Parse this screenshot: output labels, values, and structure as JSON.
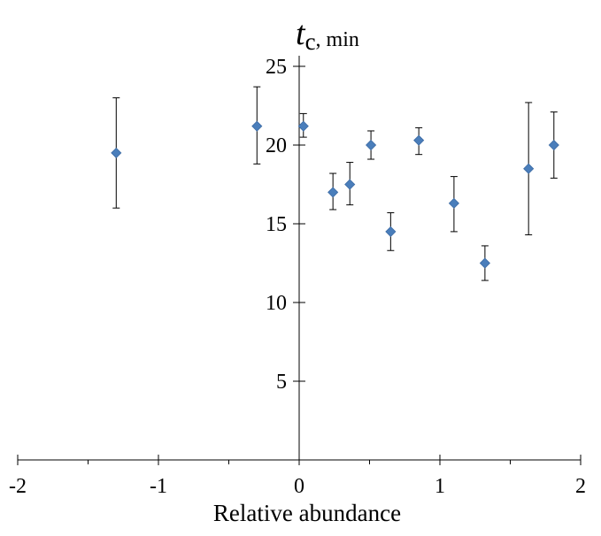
{
  "chart_data": {
    "type": "scatter",
    "title": "",
    "xlabel": "Relative abundance",
    "ylabel": {
      "symbol": "t",
      "subscript": "c",
      "unit": ", min"
    },
    "xlim": [
      -2,
      2
    ],
    "ylim": [
      0,
      25
    ],
    "x_ticks": [
      -2,
      -1,
      0,
      1,
      2
    ],
    "x_tick_labels": [
      "-2",
      "-1",
      "0",
      "1",
      "2"
    ],
    "x_minor_ticks": [
      -1.5,
      -0.5,
      0.5,
      1.5
    ],
    "y_ticks": [
      5,
      10,
      15,
      20,
      25
    ],
    "y_tick_labels": [
      "5",
      "10",
      "15",
      "20",
      "25"
    ],
    "grid": false,
    "marker": "diamond",
    "marker_color": "#4a7ebb",
    "points": [
      {
        "x": -1.3,
        "y": 19.5,
        "err_low": 16.0,
        "err_high": 23.0
      },
      {
        "x": -0.3,
        "y": 21.2,
        "err_low": 18.8,
        "err_high": 23.7
      },
      {
        "x": 0.03,
        "y": 21.2,
        "err_low": 20.5,
        "err_high": 22.0
      },
      {
        "x": 0.24,
        "y": 17.0,
        "err_low": 15.9,
        "err_high": 18.2
      },
      {
        "x": 0.36,
        "y": 17.5,
        "err_low": 16.2,
        "err_high": 18.9
      },
      {
        "x": 0.51,
        "y": 20.0,
        "err_low": 19.1,
        "err_high": 20.9
      },
      {
        "x": 0.65,
        "y": 14.5,
        "err_low": 13.3,
        "err_high": 15.7
      },
      {
        "x": 0.85,
        "y": 20.3,
        "err_low": 19.4,
        "err_high": 21.1
      },
      {
        "x": 1.1,
        "y": 16.3,
        "err_low": 14.5,
        "err_high": 18.0
      },
      {
        "x": 1.32,
        "y": 12.5,
        "err_low": 11.4,
        "err_high": 13.6
      },
      {
        "x": 1.63,
        "y": 18.5,
        "err_low": 14.3,
        "err_high": 22.7
      },
      {
        "x": 1.81,
        "y": 20.0,
        "err_low": 17.9,
        "err_high": 22.1
      }
    ]
  }
}
